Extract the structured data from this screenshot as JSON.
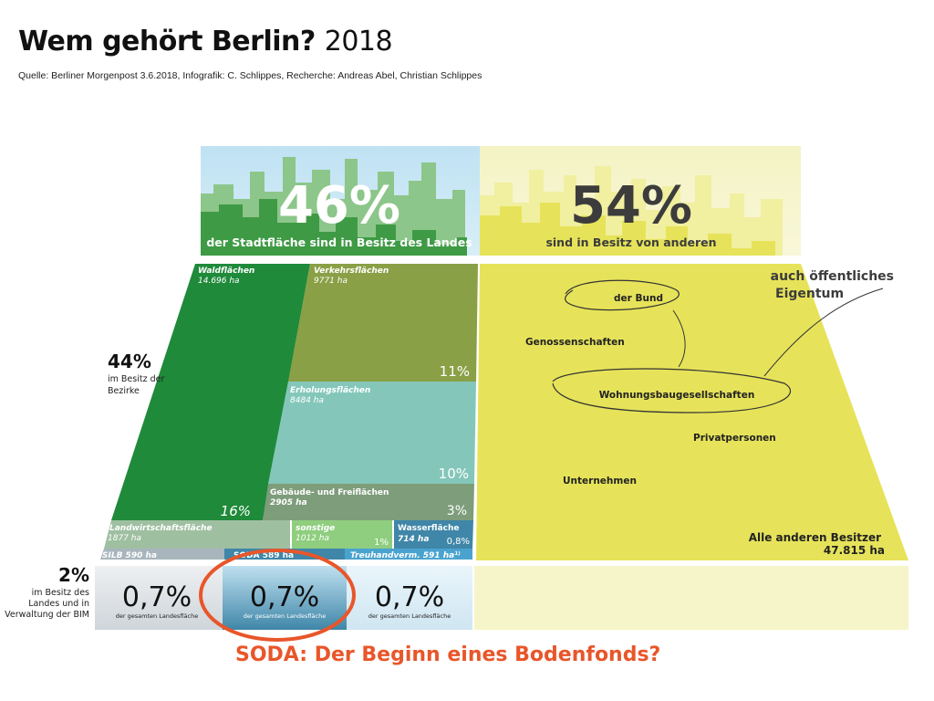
{
  "title": {
    "main": "Wem gehört Berlin?",
    "year": "2018"
  },
  "source": "Quelle: Berliner Morgenpost 3.6.2018, Infografik: C. Schlippes, Recherche: Andreas Abel, Christian Schlippes",
  "colors": {
    "land_green": "#3f9a45",
    "others_yellow": "#e6e35a",
    "wald": "#1f8a3a",
    "verkehr": "#8aa046",
    "erholung": "#84c7ba",
    "gebaeude": "#7e9d7b",
    "landwirtschaft": "#9fbfa1",
    "sonstige": "#8fce7f",
    "wasser": "#3f86a8",
    "accent_orange": "#e8562a"
  },
  "chart_data": {
    "type": "treemap",
    "title": "Wem gehört Berlin? 2018",
    "top": [
      {
        "share": 46,
        "pct_label": "46%",
        "text": "der Stadtfläche sind in Besitz des Landes"
      },
      {
        "share": 54,
        "pct_label": "54%",
        "text": "sind in Besitz von anderen"
      }
    ],
    "bezirke": {
      "share": 44,
      "pct_label": "44%",
      "label_lines": [
        "im Besitz der",
        "Bezirke"
      ],
      "items": [
        {
          "name": "Waldflächen",
          "area": "14.696 ha",
          "ha": 14696,
          "pct": 16,
          "pct_label": "16%"
        },
        {
          "name": "Verkehrsflächen",
          "area": "9771 ha",
          "ha": 9771,
          "pct": 11,
          "pct_label": "11%"
        },
        {
          "name": "Erholungsflächen",
          "area": "8484 ha",
          "ha": 8484,
          "pct": 10,
          "pct_label": "10%"
        },
        {
          "name": "Gebäude- und Freiflächen",
          "area": "2905 ha",
          "ha": 2905,
          "pct": 3,
          "pct_label": "3%"
        },
        {
          "name": "Landwirtschaftsfläche",
          "area": "1877 ha",
          "ha": 1877,
          "pct_label": ""
        },
        {
          "name": "sonstige",
          "area": "1012 ha",
          "ha": 1012,
          "pct": 1,
          "pct_label": "1%"
        },
        {
          "name": "Wasserfläche",
          "area": "714 ha",
          "ha": 714,
          "pct": 0.8,
          "pct_label": "0,8%"
        }
      ]
    },
    "bim": {
      "share": 2,
      "pct_label": "2%",
      "label_lines": [
        "im Besitz des",
        "Landes und in",
        "Verwaltung der BIM"
      ],
      "items": [
        {
          "name": "SILB 590 ha",
          "ha": 590,
          "pct": 0.7,
          "pct_label": "0,7%",
          "sub": "der gesamten Landesfläche"
        },
        {
          "name": "SODA 589 ha",
          "ha": 589,
          "pct": 0.7,
          "pct_label": "0,7%",
          "sub": "der gesamten Landesfläche"
        },
        {
          "name": "Treuhandverm. 591 ha¹⁾",
          "ha": 591,
          "pct": 0.7,
          "pct_label": "0,7%",
          "sub": "der gesamten Landesfläche"
        }
      ]
    },
    "others": {
      "title_lines": [
        "auch öffentliches",
        "Eigentum"
      ],
      "groups": [
        "der Bund",
        "Genossenschaften",
        "Wohnungsbaugesellschaften",
        "Privatpersonen",
        "Unternehmen"
      ],
      "total_label": "Alle anderen Besitzer",
      "total_area": "47.815 ha",
      "total_ha": 47815
    }
  },
  "caption": "SODA: Der Beginn eines Bodenfonds?"
}
